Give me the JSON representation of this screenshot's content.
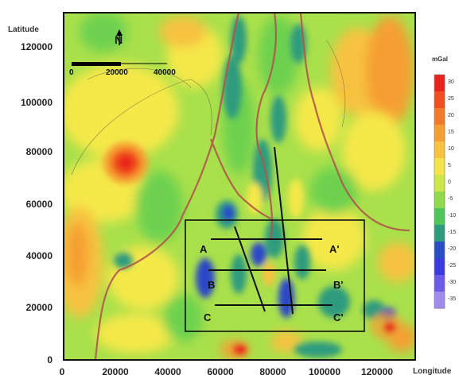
{
  "map": {
    "y_axis_title": "Latitude",
    "x_axis_title": "Longitude",
    "y_ticks": [
      "120000",
      "100000",
      "80000",
      "60000",
      "40000",
      "20000",
      "0"
    ],
    "x_ticks": [
      "0",
      "20000",
      "40000",
      "60000",
      "80000",
      "100000",
      "120000"
    ],
    "north_label": "N",
    "scale_bar": {
      "labels": [
        "0",
        "20000",
        "40000"
      ]
    },
    "profiles": [
      {
        "start_label": "A",
        "end_label": "A'"
      },
      {
        "start_label": "B",
        "end_label": "B'"
      },
      {
        "start_label": "C",
        "end_label": "C'"
      }
    ]
  },
  "colorbar": {
    "title": "mGal",
    "labels": [
      "30",
      "25",
      "20",
      "15",
      "10",
      "5",
      "0",
      "-5",
      "-10",
      "-15",
      "-20",
      "-25",
      "-30",
      "-35"
    ],
    "colors": [
      "#e8231b",
      "#f0501f",
      "#f37a2a",
      "#f59f33",
      "#f7c23f",
      "#f5e34a",
      "#cde64a",
      "#8fd94b",
      "#4fc65a",
      "#2f9b7e",
      "#2a4fc4",
      "#3a3adf",
      "#6b5be6",
      "#a08bef"
    ]
  },
  "colors": {
    "high": "#e8431f",
    "mid_high": "#f7b43a",
    "mid": "#f5e84a",
    "low_mid": "#6dd14f",
    "low": "#2f9b7e",
    "very_low": "#2a46c8",
    "contour": "#b0564a"
  }
}
